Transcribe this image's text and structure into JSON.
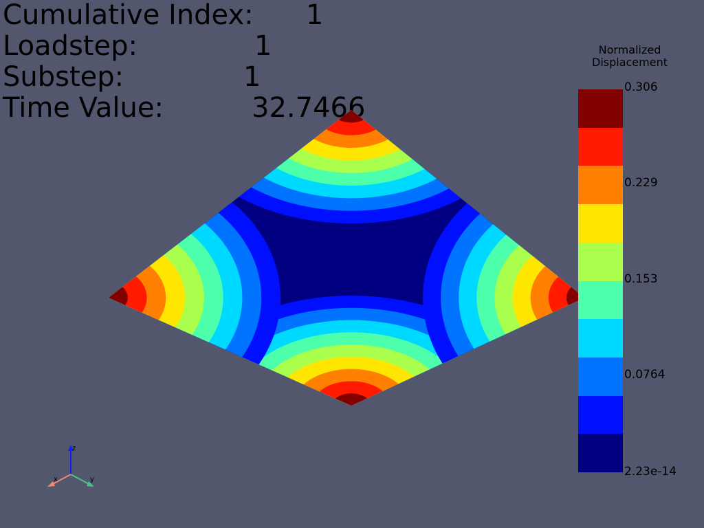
{
  "info": {
    "cumulative_index_label": "Cumulative Index:",
    "cumulative_index_value": "1",
    "loadstep_label": "Loadstep:",
    "loadstep_value": "1",
    "substep_label": "Substep:",
    "substep_value": "1",
    "time_value_label": "Time Value:",
    "time_value_value": "32.7466"
  },
  "colorbar": {
    "title_line1": "Normalized",
    "title_line2": "Displacement",
    "labels": [
      "0.306",
      "0.229",
      "0.153",
      "0.0764",
      "2.23e-14"
    ],
    "colors": [
      "#800000",
      "#ff1a00",
      "#ff7f00",
      "#ffe600",
      "#aaff4d",
      "#4dffaa",
      "#00d9ff",
      "#0073ff",
      "#0010ff",
      "#000080"
    ]
  },
  "triad": {
    "x_label": "x",
    "y_label": "y",
    "z_label": "z",
    "x_color": "#f08a72",
    "y_color": "#49c48a",
    "z_color": "#1a1aff"
  }
}
